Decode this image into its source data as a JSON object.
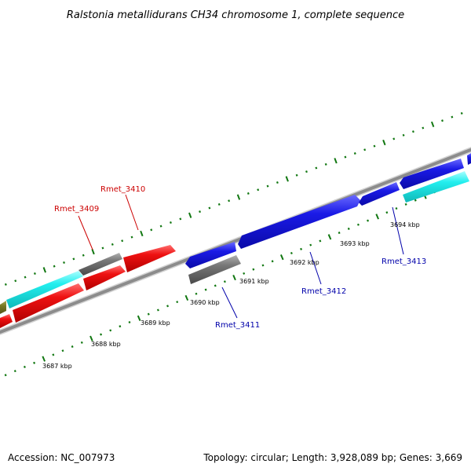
{
  "title": "Ralstonia metallidurans CH34 chromosome 1, complete sequence",
  "accession": "Accession: NC_007973",
  "topology": "Topology: circular; Length: 3,928,089 bp; Genes: 3,669",
  "scale_labels": [
    "3687 kbp",
    "3688 kbp",
    "3689 kbp",
    "3690 kbp",
    "3691 kbp",
    "3692 kbp",
    "3693 kbp",
    "3694 kbp"
  ],
  "gene_labels": [
    {
      "id": "Rmet_3409",
      "strand": "forward"
    },
    {
      "id": "Rmet_3410",
      "strand": "forward"
    },
    {
      "id": "Rmet_3411",
      "strand": "reverse"
    },
    {
      "id": "Rmet_3412",
      "strand": "reverse"
    },
    {
      "id": "Rmet_3413",
      "strand": "reverse"
    }
  ],
  "colors": {
    "red": "#ee1111",
    "blue": "#1a1ae6",
    "cyan": "#22eeee",
    "gray": "#6e6e6e",
    "olive": "#777722",
    "backbone": "#8c8c8c",
    "ticks": "#117711",
    "label_red": "#cc0000",
    "label_blue": "#0000aa"
  }
}
